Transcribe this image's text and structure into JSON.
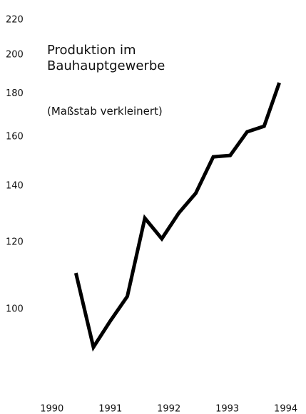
{
  "chart_data": {
    "type": "line",
    "title": "Produktion im Bauhauptgewerbe",
    "subtitle": "(Maßstab verkleinert)",
    "log_scale": true,
    "color": "#000000",
    "x": [
      1990.41,
      1990.71,
      1991.0,
      1991.29,
      1991.59,
      1991.88,
      1992.17,
      1992.46,
      1992.76,
      1993.05,
      1993.34,
      1993.63,
      1993.89
    ],
    "values": [
      110.4,
      90.2,
      96.9,
      103.6,
      128.2,
      121.2,
      130.0,
      137.2,
      151.5,
      152.1,
      162.2,
      164.7,
      185.4
    ],
    "xlim": [
      1989.6,
      1994.2
    ],
    "xticks": [
      1990,
      1991,
      1992,
      1993,
      1994
    ],
    "ylim": [
      80,
      220
    ],
    "yticks": [
      100,
      120,
      140,
      160,
      180,
      200,
      220
    ]
  }
}
